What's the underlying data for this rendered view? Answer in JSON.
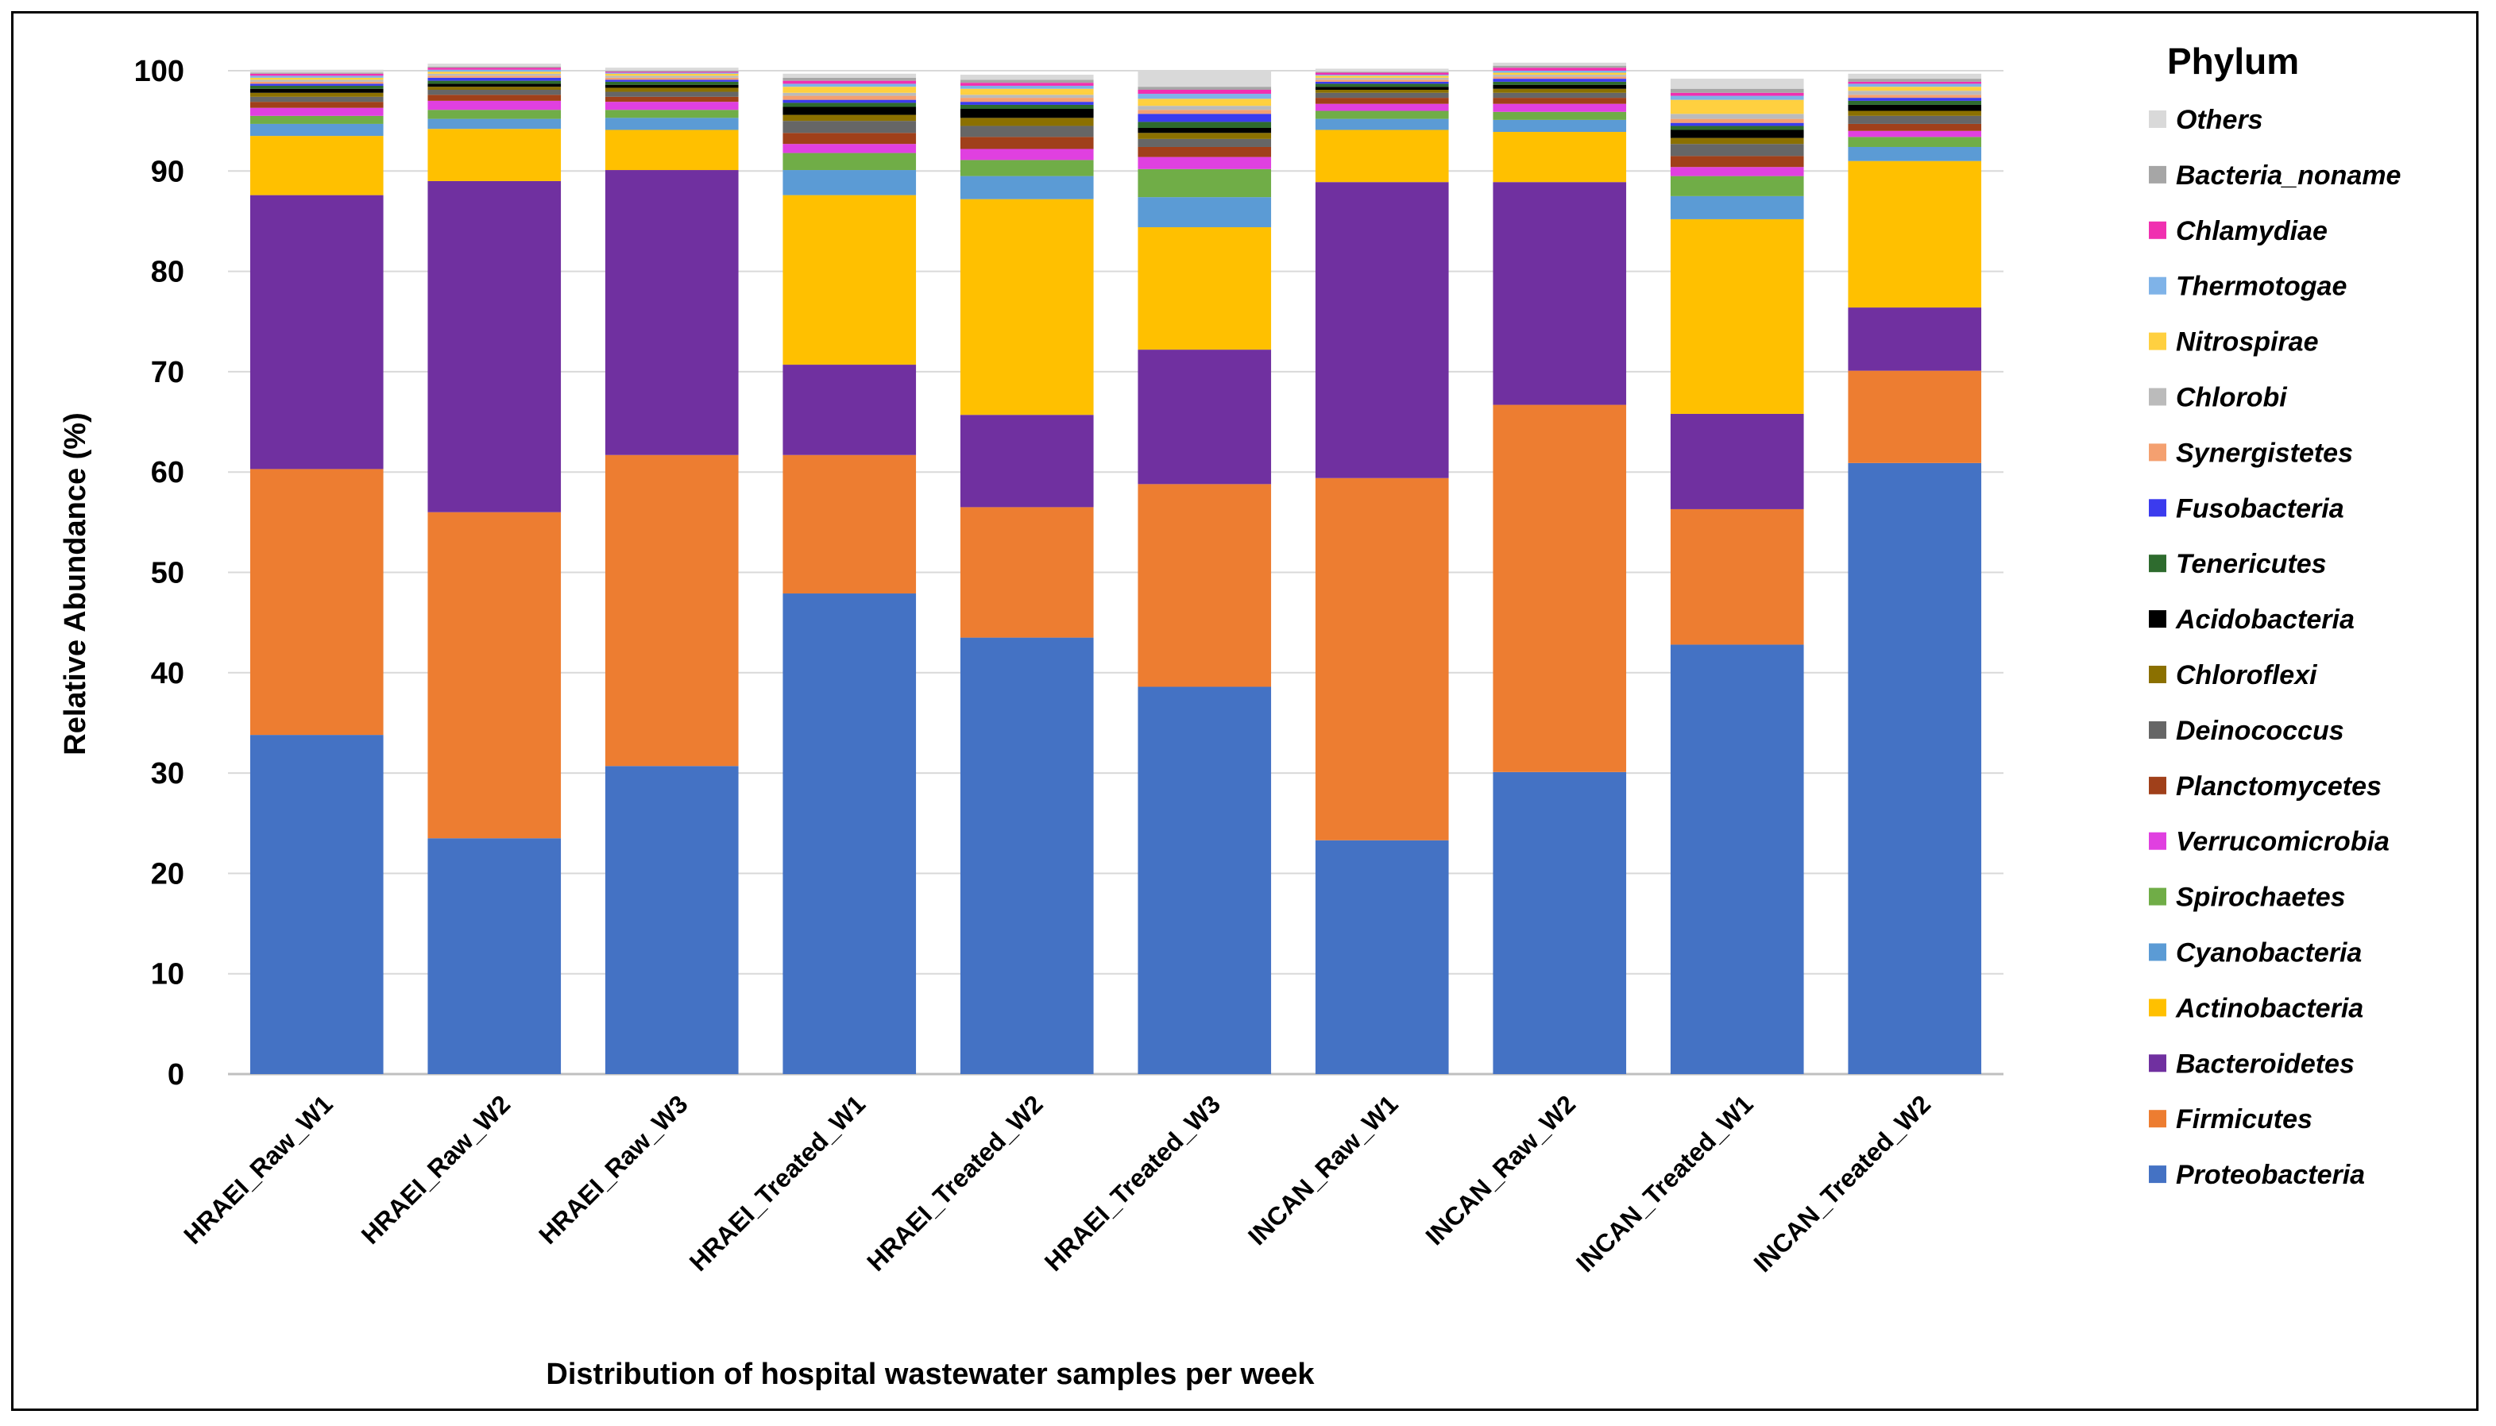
{
  "chart_data": {
    "type": "bar",
    "stacked": true,
    "title": "",
    "xlabel": "Distribution of hospital wastewater samples per week",
    "ylabel": "Relative Abundance  (%)",
    "ylim": [
      0,
      100
    ],
    "yticks": [
      0,
      10,
      20,
      30,
      40,
      50,
      60,
      70,
      80,
      90,
      100
    ],
    "grid": "horizontal",
    "legend_title": "Phylum",
    "legend_position": "right",
    "categories": [
      "HRAEI_Raw_W1",
      "HRAEI_Raw_W2",
      "HRAEI_Raw_W3",
      "HRAEI_Treated_W1",
      "HRAEI_Treated_W2",
      "HRAEI_Treated_W3",
      "INCAN_Raw_W1",
      "INCAN_Raw_W2",
      "INCAN_Treated_W1",
      "INCAN_Treated_W2"
    ],
    "series": [
      {
        "name": "Proteobacteria",
        "color": "#4472C4",
        "values": [
          33.8,
          23.5,
          30.7,
          47.9,
          43.5,
          38.6,
          23.3,
          30.1,
          42.8,
          60.9
        ]
      },
      {
        "name": "Firmicutes",
        "color": "#ED7D31",
        "values": [
          26.5,
          32.5,
          31.0,
          13.8,
          13.0,
          20.2,
          36.1,
          36.6,
          13.5,
          9.2
        ]
      },
      {
        "name": "Bacteroidetes",
        "color": "#7030A0",
        "values": [
          27.3,
          33.0,
          28.4,
          9.0,
          9.2,
          13.4,
          29.5,
          22.2,
          9.5,
          6.3
        ]
      },
      {
        "name": "Actinobacteria",
        "color": "#FFC000",
        "values": [
          5.9,
          5.2,
          4.0,
          16.9,
          21.5,
          12.2,
          5.2,
          5.0,
          19.4,
          14.6
        ]
      },
      {
        "name": "Cyanobacteria",
        "color": "#5B9BD5",
        "values": [
          1.2,
          1.0,
          1.2,
          2.5,
          2.3,
          3.0,
          1.1,
          1.2,
          2.3,
          1.4
        ]
      },
      {
        "name": "Spirochaetes",
        "color": "#70AD47",
        "values": [
          0.8,
          0.9,
          0.8,
          1.7,
          1.6,
          2.8,
          0.8,
          0.8,
          2.0,
          1.0
        ]
      },
      {
        "name": "Verrucomicrobia",
        "color": "#E040E0",
        "values": [
          0.8,
          0.9,
          0.8,
          0.9,
          1.1,
          1.2,
          0.7,
          0.8,
          0.9,
          0.6
        ]
      },
      {
        "name": "Planctomycetes",
        "color": "#A0401A",
        "values": [
          0.6,
          0.6,
          0.5,
          1.1,
          1.2,
          1.0,
          0.6,
          0.6,
          1.1,
          0.7
        ]
      },
      {
        "name": "Deinococcus",
        "color": "#666666",
        "values": [
          0.5,
          0.5,
          0.5,
          1.2,
          1.1,
          0.8,
          0.5,
          0.5,
          1.2,
          0.8
        ]
      },
      {
        "name": "Chloroflexi",
        "color": "#8B7000",
        "values": [
          0.4,
          0.3,
          0.4,
          0.6,
          0.8,
          0.6,
          0.3,
          0.4,
          0.6,
          0.5
        ]
      },
      {
        "name": "Acidobacteria",
        "color": "#000000",
        "values": [
          0.4,
          0.3,
          0.3,
          0.8,
          0.9,
          0.5,
          0.3,
          0.4,
          0.8,
          0.6
        ]
      },
      {
        "name": "Tenericutes",
        "color": "#2E6B2E",
        "values": [
          0.3,
          0.3,
          0.3,
          0.4,
          0.4,
          0.6,
          0.3,
          0.3,
          0.4,
          0.4
        ]
      },
      {
        "name": "Fusobacteria",
        "color": "#3B3BEE",
        "values": [
          0.2,
          0.3,
          0.2,
          0.3,
          0.3,
          0.8,
          0.2,
          0.3,
          0.3,
          0.3
        ]
      },
      {
        "name": "Synergistetes",
        "color": "#F4A070",
        "values": [
          0.2,
          0.2,
          0.2,
          0.4,
          0.4,
          0.4,
          0.2,
          0.2,
          0.4,
          0.3
        ]
      },
      {
        "name": "Chlorobi",
        "color": "#BBBBBB",
        "values": [
          0.2,
          0.2,
          0.2,
          0.3,
          0.3,
          0.4,
          0.2,
          0.2,
          0.5,
          0.4
        ]
      },
      {
        "name": "Nitrospirae",
        "color": "#FFD040",
        "values": [
          0.2,
          0.2,
          0.2,
          0.6,
          0.6,
          0.7,
          0.2,
          0.2,
          1.4,
          0.4
        ]
      },
      {
        "name": "Thermotogae",
        "color": "#7FB3E8",
        "values": [
          0.2,
          0.2,
          0.1,
          0.3,
          0.3,
          0.5,
          0.1,
          0.2,
          0.4,
          0.3
        ]
      },
      {
        "name": "Chlamydiae",
        "color": "#F030B0",
        "values": [
          0.2,
          0.2,
          0.1,
          0.3,
          0.3,
          0.4,
          0.2,
          0.3,
          0.3,
          0.2
        ]
      },
      {
        "name": "Bacteria_noname",
        "color": "#A6A6A6",
        "values": [
          0.1,
          0.1,
          0.1,
          0.3,
          0.3,
          0.3,
          0.1,
          0.2,
          0.4,
          0.3
        ]
      },
      {
        "name": "Others",
        "color": "#D9D9D9",
        "values": [
          0.3,
          0.3,
          0.3,
          0.4,
          0.5,
          1.6,
          0.3,
          0.3,
          1.0,
          0.5
        ]
      }
    ]
  }
}
